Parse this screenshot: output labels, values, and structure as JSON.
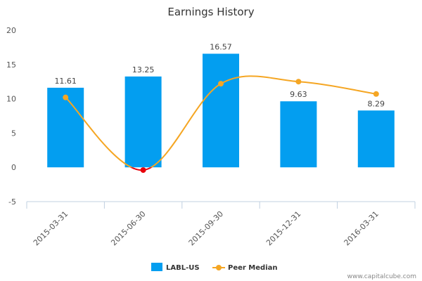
{
  "chart_data": {
    "type": "bar",
    "title": "Earnings History",
    "categories": [
      "2015-03-31",
      "2015-06-30",
      "2015-09-30",
      "2015-12-31",
      "2016-03-31"
    ],
    "series": [
      {
        "name": "LABL-US",
        "type": "bar",
        "color": "#039ef0",
        "values": [
          11.61,
          13.25,
          16.57,
          9.63,
          8.29
        ],
        "labels": [
          "11.61",
          "13.25",
          "16.57",
          "9.63",
          "8.29"
        ]
      },
      {
        "name": "Peer Median",
        "type": "line",
        "color": "#f5a623",
        "negative_color": "#e8000b",
        "values": [
          10.2,
          -0.4,
          12.2,
          12.5,
          10.7
        ]
      }
    ],
    "yticks": [
      -5,
      0,
      5,
      10,
      15,
      20
    ],
    "ylim": [
      -5,
      20
    ],
    "legend_position": "bottom",
    "credit": "www.capitalcube.com"
  }
}
